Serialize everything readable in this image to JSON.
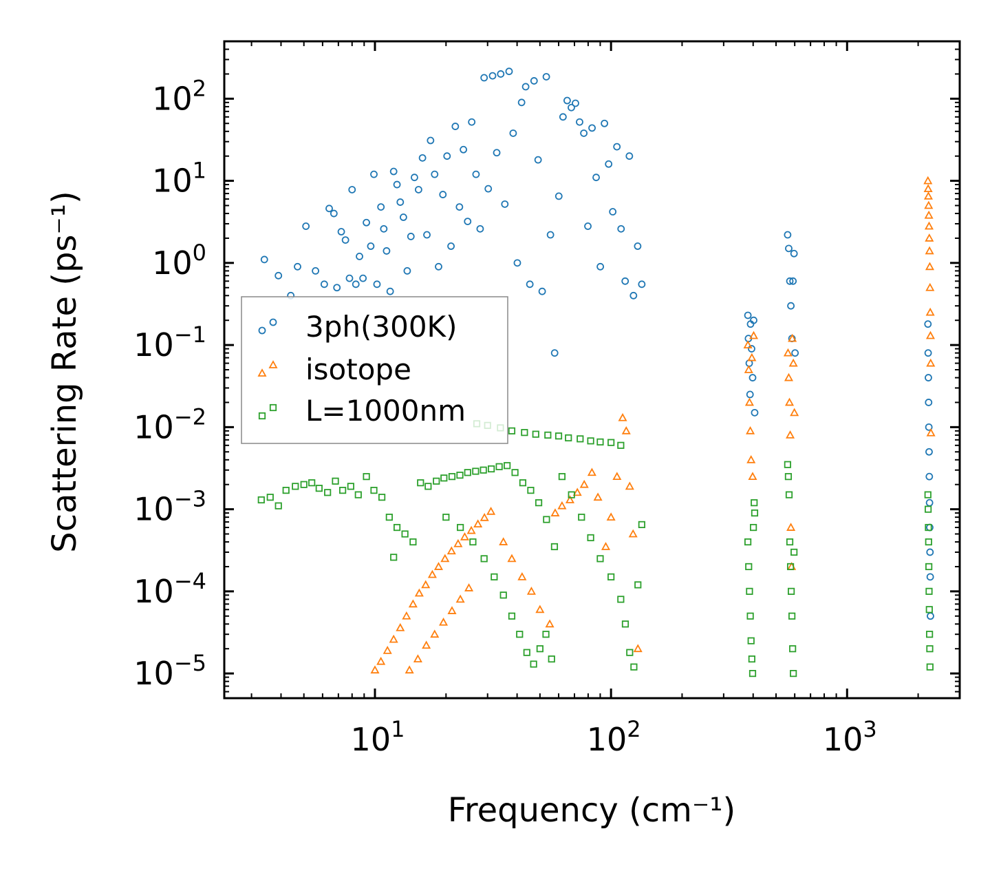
{
  "chart_data": {
    "type": "scatter",
    "title": "",
    "xlabel": "Frequency (cm⁻¹)",
    "ylabel": "Scattering Rate (ps⁻¹)",
    "xscale": "log",
    "yscale": "log",
    "xlim": [
      2.3,
      3000
    ],
    "ylim": [
      5e-06,
      500
    ],
    "grid": false,
    "legend_position": "center-left",
    "x_ticks": [
      {
        "value": 10,
        "label": "10",
        "exp": "1"
      },
      {
        "value": 100,
        "label": "10",
        "exp": "2"
      },
      {
        "value": 1000,
        "label": "10",
        "exp": "3"
      }
    ],
    "y_ticks": [
      {
        "value": 1e-05,
        "label": "10",
        "exp": "−5"
      },
      {
        "value": 0.0001,
        "label": "10",
        "exp": "−4"
      },
      {
        "value": 0.001,
        "label": "10",
        "exp": "−3"
      },
      {
        "value": 0.01,
        "label": "10",
        "exp": "−2"
      },
      {
        "value": 0.1,
        "label": "10",
        "exp": "−1"
      },
      {
        "value": 1,
        "label": "10",
        "exp": "0"
      },
      {
        "value": 10,
        "label": "10",
        "exp": "1"
      },
      {
        "value": 100,
        "label": "10",
        "exp": "2"
      }
    ],
    "series": [
      {
        "name": "3ph(300K)",
        "marker": "circle",
        "color": "#1f77b4",
        "points": [
          [
            3.4,
            1.1
          ],
          [
            3.9,
            0.7
          ],
          [
            4.4,
            0.4
          ],
          [
            4.7,
            0.9
          ],
          [
            5.1,
            2.8
          ],
          [
            5.6,
            0.8
          ],
          [
            6.1,
            0.55
          ],
          [
            6.4,
            4.6
          ],
          [
            6.7,
            4.0
          ],
          [
            6.9,
            0.5
          ],
          [
            7.2,
            2.4
          ],
          [
            7.5,
            1.9
          ],
          [
            7.8,
            0.65
          ],
          [
            8.0,
            7.8
          ],
          [
            8.3,
            0.55
          ],
          [
            8.6,
            1.2
          ],
          [
            8.9,
            0.65
          ],
          [
            9.2,
            3.1
          ],
          [
            9.6,
            1.6
          ],
          [
            9.9,
            12
          ],
          [
            10.2,
            0.55
          ],
          [
            10.6,
            4.8
          ],
          [
            10.9,
            2.6
          ],
          [
            11.2,
            1.4
          ],
          [
            11.6,
            0.45
          ],
          [
            12.0,
            13
          ],
          [
            12.4,
            9
          ],
          [
            12.8,
            5.5
          ],
          [
            13.2,
            3.6
          ],
          [
            13.7,
            0.8
          ],
          [
            14.2,
            2.1
          ],
          [
            14.7,
            11
          ],
          [
            15.3,
            7.8
          ],
          [
            15.9,
            19
          ],
          [
            16.6,
            2.2
          ],
          [
            17.2,
            31
          ],
          [
            17.9,
            12
          ],
          [
            18.6,
            0.9
          ],
          [
            19.4,
            6.8
          ],
          [
            20.2,
            20
          ],
          [
            21.0,
            1.6
          ],
          [
            21.9,
            46
          ],
          [
            22.8,
            4.8
          ],
          [
            23.7,
            24
          ],
          [
            24.7,
            3.2
          ],
          [
            25.7,
            52
          ],
          [
            26.8,
            12
          ],
          [
            27.9,
            2.6
          ],
          [
            29.0,
            180
          ],
          [
            30.2,
            8
          ],
          [
            31.5,
            190
          ],
          [
            32.8,
            22
          ],
          [
            34.1,
            200
          ],
          [
            35.5,
            5.2
          ],
          [
            37.0,
            215
          ],
          [
            38.5,
            38
          ],
          [
            40.1,
            1.0
          ],
          [
            41.8,
            90
          ],
          [
            43.5,
            140
          ],
          [
            45.3,
            0.55
          ],
          [
            47.2,
            165
          ],
          [
            49.1,
            18
          ],
          [
            51.1,
            0.45
          ],
          [
            53.2,
            185
          ],
          [
            55.4,
            2.2
          ],
          [
            57.7,
            0.08
          ],
          [
            60.1,
            6.5
          ],
          [
            62.6,
            60
          ],
          [
            65.2,
            95
          ],
          [
            67.9,
            78
          ],
          [
            70.7,
            88
          ],
          [
            73.6,
            52
          ],
          [
            76.7,
            38
          ],
          [
            79.8,
            2.8
          ],
          [
            83.1,
            44
          ],
          [
            86.5,
            11
          ],
          [
            90.1,
            0.9
          ],
          [
            93.8,
            50
          ],
          [
            97.7,
            16
          ],
          [
            101.7,
            4.2
          ],
          [
            105.9,
            26
          ],
          [
            110.3,
            2.6
          ],
          [
            114.8,
            0.6
          ],
          [
            119.6,
            20
          ],
          [
            124.5,
            0.4
          ],
          [
            129.7,
            1.6
          ],
          [
            135.0,
            0.55
          ],
          [
            380,
            0.23
          ],
          [
            382,
            0.12
          ],
          [
            385,
            0.06
          ],
          [
            388,
            0.025
          ],
          [
            390,
            0.18
          ],
          [
            394,
            0.09
          ],
          [
            398,
            0.04
          ],
          [
            402,
            0.2
          ],
          [
            406,
            0.015
          ],
          [
            560,
            2.2
          ],
          [
            566,
            1.5
          ],
          [
            572,
            0.6
          ],
          [
            578,
            0.3
          ],
          [
            584,
            0.12
          ],
          [
            590,
            0.6
          ],
          [
            596,
            1.3
          ],
          [
            602,
            0.08
          ],
          [
            2200,
            0.18
          ],
          [
            2205,
            0.08
          ],
          [
            2210,
            0.04
          ],
          [
            2215,
            0.02
          ],
          [
            2220,
            0.01
          ],
          [
            2225,
            0.005
          ],
          [
            2230,
            0.0025
          ],
          [
            2235,
            0.0012
          ],
          [
            2240,
            0.0006
          ],
          [
            2245,
            0.0003
          ],
          [
            2250,
            0.00015
          ],
          [
            2255,
            5e-05
          ]
        ]
      },
      {
        "name": "isotope",
        "marker": "triangle",
        "color": "#ff7f0e",
        "points": [
          [
            10.0,
            1.1e-05
          ],
          [
            10.6,
            1.4e-05
          ],
          [
            11.3,
            1.9e-05
          ],
          [
            12.0,
            2.6e-05
          ],
          [
            12.8,
            3.6e-05
          ],
          [
            13.6,
            5e-05
          ],
          [
            14.5,
            7e-05
          ],
          [
            15.4,
            9.5e-05
          ],
          [
            16.4,
            0.00012
          ],
          [
            17.5,
            0.00016
          ],
          [
            18.6,
            0.0002
          ],
          [
            19.8,
            0.00025
          ],
          [
            21.1,
            0.00031
          ],
          [
            22.5,
            0.00038
          ],
          [
            24.0,
            0.00046
          ],
          [
            25.6,
            0.00055
          ],
          [
            27.3,
            0.00066
          ],
          [
            29.1,
            0.00079
          ],
          [
            31.0,
            0.00094
          ],
          [
            14.0,
            1.1e-05
          ],
          [
            15.2,
            1.5e-05
          ],
          [
            16.5,
            2.2e-05
          ],
          [
            17.9,
            3e-05
          ],
          [
            19.5,
            4.2e-05
          ],
          [
            21.2,
            5.8e-05
          ],
          [
            23.0,
            8e-05
          ],
          [
            25.0,
            0.00011
          ],
          [
            35,
            0.0004
          ],
          [
            38,
            0.00025
          ],
          [
            42,
            0.00015
          ],
          [
            46,
            0.0001
          ],
          [
            50,
            6e-05
          ],
          [
            55,
            4e-05
          ],
          [
            58,
            0.0009
          ],
          [
            62,
            0.0011
          ],
          [
            67,
            0.0013
          ],
          [
            72,
            0.0016
          ],
          [
            77,
            0.002
          ],
          [
            83,
            0.0028
          ],
          [
            88,
            0.0014
          ],
          [
            95,
            0.00035
          ],
          [
            100,
            0.0008
          ],
          [
            106,
            0.0025
          ],
          [
            112,
            0.013
          ],
          [
            116,
            0.009
          ],
          [
            120,
            0.0019
          ],
          [
            124,
            0.0005
          ],
          [
            130,
            2e-05
          ],
          [
            380,
            0.1
          ],
          [
            383,
            0.05
          ],
          [
            386,
            0.02
          ],
          [
            389,
            0.009
          ],
          [
            392,
            0.004
          ],
          [
            395,
            0.07
          ],
          [
            398,
            0.0025
          ],
          [
            402,
            0.13
          ],
          [
            562,
            0.08
          ],
          [
            566,
            0.04
          ],
          [
            570,
            0.02
          ],
          [
            574,
            0.008
          ],
          [
            578,
            0.0006
          ],
          [
            582,
            0.0002
          ],
          [
            586,
            0.12
          ],
          [
            592,
            0.06
          ],
          [
            598,
            0.015
          ],
          [
            2200,
            10
          ],
          [
            2205,
            8
          ],
          [
            2210,
            6.5
          ],
          [
            2215,
            5
          ],
          [
            2220,
            3.8
          ],
          [
            2225,
            2.8
          ],
          [
            2230,
            2
          ],
          [
            2235,
            1.4
          ],
          [
            2240,
            0.9
          ],
          [
            2245,
            0.5
          ],
          [
            2250,
            0.25
          ],
          [
            2255,
            0.13
          ],
          [
            2260,
            0.06
          ],
          [
            2265,
            0.0085
          ]
        ]
      },
      {
        "name": "L=1000nm",
        "marker": "square",
        "color": "#2ca02c",
        "points": [
          [
            3.3,
            0.0013
          ],
          [
            3.6,
            0.0014
          ],
          [
            3.9,
            0.0011
          ],
          [
            4.2,
            0.0017
          ],
          [
            4.6,
            0.0019
          ],
          [
            5.0,
            0.002
          ],
          [
            5.4,
            0.0021
          ],
          [
            5.8,
            0.0018
          ],
          [
            6.3,
            0.0016
          ],
          [
            6.8,
            0.0022
          ],
          [
            7.3,
            0.0017
          ],
          [
            7.9,
            0.0019
          ],
          [
            8.5,
            0.0015
          ],
          [
            9.2,
            0.0025
          ],
          [
            9.9,
            0.0017
          ],
          [
            10.7,
            0.0014
          ],
          [
            11.5,
            0.0008
          ],
          [
            12.4,
            0.0006
          ],
          [
            13.4,
            0.0005
          ],
          [
            14.5,
            0.0004
          ],
          [
            12.0,
            0.00026
          ],
          [
            15.6,
            0.0021
          ],
          [
            16.8,
            0.0019
          ],
          [
            18.2,
            0.0022
          ],
          [
            19.6,
            0.0024
          ],
          [
            21.2,
            0.0025
          ],
          [
            22.9,
            0.0026
          ],
          [
            24.7,
            0.0028
          ],
          [
            26.7,
            0.0029
          ],
          [
            28.8,
            0.003
          ],
          [
            31.1,
            0.0031
          ],
          [
            33.6,
            0.0033
          ],
          [
            36.3,
            0.0034
          ],
          [
            39.2,
            0.0028
          ],
          [
            42.3,
            0.0021
          ],
          [
            45.7,
            0.0017
          ],
          [
            49.4,
            0.0012
          ],
          [
            53.3,
            0.00075
          ],
          [
            57.6,
            0.00035
          ],
          [
            27,
            0.011
          ],
          [
            30,
            0.0105
          ],
          [
            34,
            0.0098
          ],
          [
            38,
            0.009
          ],
          [
            43,
            0.0086
          ],
          [
            48,
            0.0082
          ],
          [
            54,
            0.008
          ],
          [
            60,
            0.0078
          ],
          [
            66,
            0.0074
          ],
          [
            74,
            0.0072
          ],
          [
            82,
            0.0068
          ],
          [
            90,
            0.0066
          ],
          [
            100,
            0.0065
          ],
          [
            110,
            0.006
          ],
          [
            20,
            0.0008
          ],
          [
            23,
            0.0006
          ],
          [
            26,
            0.0004
          ],
          [
            29,
            0.00025
          ],
          [
            32,
            0.00015
          ],
          [
            35,
            9e-05
          ],
          [
            38,
            5e-05
          ],
          [
            41,
            3e-05
          ],
          [
            44,
            1.8e-05
          ],
          [
            47,
            1.3e-05
          ],
          [
            50,
            2e-05
          ],
          [
            53,
            3e-05
          ],
          [
            56,
            1.5e-05
          ],
          [
            62,
            0.0025
          ],
          [
            68,
            0.0015
          ],
          [
            75,
            0.0008
          ],
          [
            82,
            0.00045
          ],
          [
            90,
            0.00025
          ],
          [
            100,
            0.00015
          ],
          [
            110,
            8e-05
          ],
          [
            115,
            4e-05
          ],
          [
            120,
            1.8e-05
          ],
          [
            125,
            1.2e-05
          ],
          [
            130,
            0.00012
          ],
          [
            135,
            0.00065
          ],
          [
            380,
            0.0004
          ],
          [
            383,
            0.0002
          ],
          [
            386,
            0.0001
          ],
          [
            389,
            5e-05
          ],
          [
            392,
            2.5e-05
          ],
          [
            395,
            1.5e-05
          ],
          [
            398,
            1e-05
          ],
          [
            401,
            0.0006
          ],
          [
            404,
            0.0012
          ],
          [
            406,
            0.0009
          ],
          [
            560,
            0.0035
          ],
          [
            564,
            0.0025
          ],
          [
            568,
            0.0015
          ],
          [
            572,
            0.0004
          ],
          [
            576,
            0.0002
          ],
          [
            580,
            0.0001
          ],
          [
            584,
            5e-05
          ],
          [
            588,
            2e-05
          ],
          [
            592,
            1e-05
          ],
          [
            596,
            0.0003
          ],
          [
            2200,
            0.0015
          ],
          [
            2205,
            0.001
          ],
          [
            2210,
            0.0006
          ],
          [
            2215,
            0.0004
          ],
          [
            2220,
            0.0002
          ],
          [
            2225,
            0.0001
          ],
          [
            2230,
            6e-05
          ],
          [
            2235,
            3e-05
          ],
          [
            2240,
            2e-05
          ],
          [
            2245,
            1.2e-05
          ]
        ]
      }
    ]
  }
}
